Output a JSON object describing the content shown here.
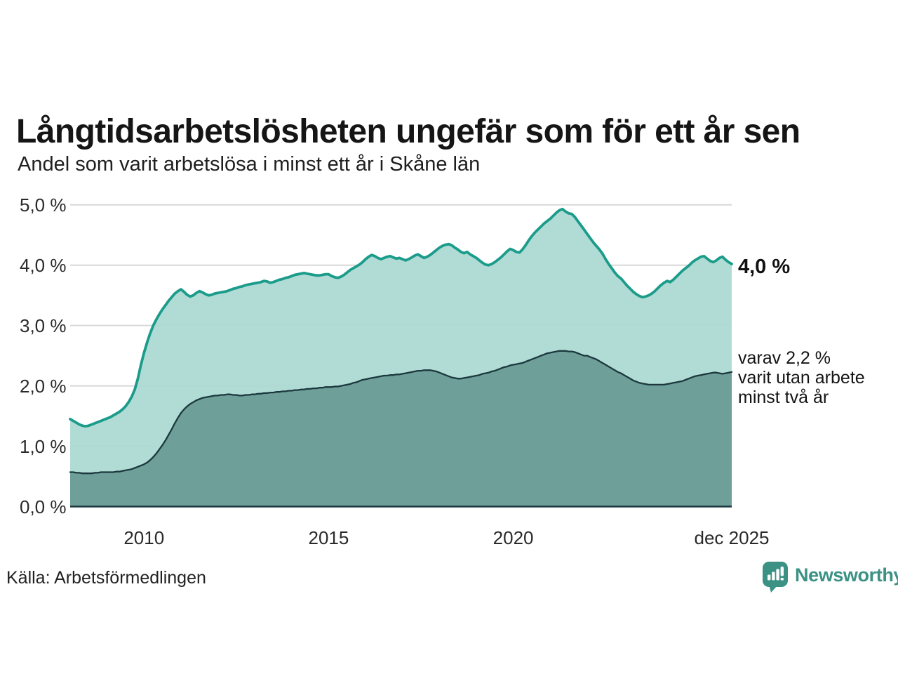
{
  "title": "Långtidsarbetslösheten ungefär som för ett år sen",
  "subtitle": "Andel som varit arbetslösa i minst ett år i Skåne län",
  "source": "Källa: Arbetsförmedlingen",
  "branding": {
    "name": "Newsworthy",
    "logo_icon": "bar-chart-speech-bubble-icon",
    "color": "#3b9184"
  },
  "end_labels": {
    "one_year": "4,0 %",
    "two_years_lines": [
      "varav 2,2 %",
      "varit utan arbete",
      "minst två år"
    ]
  },
  "colors": {
    "line_one_year": "#1b9c8b",
    "fill_one_year": "#abd9d2",
    "line_two_years": "#1c383e",
    "fill_two_years": "#689a95",
    "gridline": "#d8d8d8",
    "baseline": "#1c383e"
  },
  "chart_data": {
    "type": "area",
    "title": "Långtidsarbetslösheten ungefär som för ett år sen",
    "subtitle": "Andel som varit arbetslösa i minst ett år i Skåne län",
    "x_start_year": 2008,
    "x_end_year": 2025.9167,
    "x_resolution": "monthly",
    "ylim": [
      0,
      5
    ],
    "grid": true,
    "legend": "inline-annotations",
    "yticks": [
      {
        "label": "0,0 %",
        "value": 0
      },
      {
        "label": "1,0 %",
        "value": 1
      },
      {
        "label": "2,0 %",
        "value": 2
      },
      {
        "label": "3,0 %",
        "value": 3
      },
      {
        "label": "4,0 %",
        "value": 4
      },
      {
        "label": "5,0 %",
        "value": 5
      }
    ],
    "xticks": [
      {
        "label": "2010",
        "year": 2010
      },
      {
        "label": "2015",
        "year": 2015
      },
      {
        "label": "2020",
        "year": 2020
      },
      {
        "label": "dec 2025",
        "year": 2025.9167
      }
    ],
    "series": [
      {
        "name": "Andel som varit arbetslösa i minst ett år",
        "end_value_label": "4,0 %",
        "line_color": "#1b9c8b",
        "fill_color": "#abd9d2",
        "values": [
          1.45,
          1.42,
          1.39,
          1.36,
          1.34,
          1.33,
          1.34,
          1.36,
          1.38,
          1.4,
          1.42,
          1.44,
          1.46,
          1.48,
          1.51,
          1.54,
          1.57,
          1.61,
          1.66,
          1.73,
          1.82,
          1.94,
          2.12,
          2.35,
          2.55,
          2.72,
          2.87,
          3.0,
          3.1,
          3.19,
          3.27,
          3.34,
          3.41,
          3.47,
          3.53,
          3.57,
          3.6,
          3.56,
          3.51,
          3.48,
          3.5,
          3.54,
          3.57,
          3.55,
          3.52,
          3.5,
          3.51,
          3.53,
          3.54,
          3.55,
          3.56,
          3.57,
          3.59,
          3.61,
          3.62,
          3.64,
          3.65,
          3.67,
          3.68,
          3.69,
          3.7,
          3.71,
          3.72,
          3.74,
          3.73,
          3.71,
          3.72,
          3.74,
          3.76,
          3.77,
          3.79,
          3.8,
          3.82,
          3.84,
          3.85,
          3.86,
          3.87,
          3.86,
          3.85,
          3.84,
          3.83,
          3.83,
          3.84,
          3.85,
          3.85,
          3.82,
          3.8,
          3.79,
          3.81,
          3.84,
          3.88,
          3.92,
          3.95,
          3.98,
          4.01,
          4.05,
          4.1,
          4.14,
          4.17,
          4.15,
          4.12,
          4.1,
          4.12,
          4.14,
          4.15,
          4.13,
          4.11,
          4.12,
          4.1,
          4.08,
          4.1,
          4.13,
          4.16,
          4.18,
          4.15,
          4.12,
          4.14,
          4.17,
          4.21,
          4.25,
          4.29,
          4.32,
          4.34,
          4.35,
          4.33,
          4.29,
          4.26,
          4.22,
          4.2,
          4.22,
          4.18,
          4.15,
          4.12,
          4.08,
          4.04,
          4.01,
          4.0,
          4.02,
          4.05,
          4.09,
          4.13,
          4.18,
          4.23,
          4.27,
          4.25,
          4.22,
          4.21,
          4.26,
          4.33,
          4.41,
          4.48,
          4.54,
          4.59,
          4.64,
          4.69,
          4.73,
          4.77,
          4.82,
          4.87,
          4.91,
          4.93,
          4.89,
          4.86,
          4.85,
          4.8,
          4.73,
          4.66,
          4.59,
          4.52,
          4.45,
          4.38,
          4.32,
          4.26,
          4.19,
          4.1,
          4.02,
          3.95,
          3.88,
          3.82,
          3.78,
          3.72,
          3.66,
          3.61,
          3.56,
          3.52,
          3.49,
          3.47,
          3.48,
          3.5,
          3.53,
          3.57,
          3.62,
          3.67,
          3.71,
          3.74,
          3.72,
          3.76,
          3.81,
          3.86,
          3.91,
          3.95,
          3.99,
          4.04,
          4.08,
          4.11,
          4.14,
          4.15,
          4.11,
          4.07,
          4.05,
          4.08,
          4.12,
          4.14,
          4.09,
          4.05,
          4.02
        ]
      },
      {
        "name": "varav utan arbete minst två år",
        "end_value_label": "2,2 %",
        "line_color": "#1c383e",
        "fill_color": "#689a95",
        "values": [
          0.57,
          0.57,
          0.56,
          0.56,
          0.55,
          0.55,
          0.55,
          0.55,
          0.56,
          0.56,
          0.57,
          0.57,
          0.57,
          0.57,
          0.57,
          0.58,
          0.58,
          0.59,
          0.6,
          0.61,
          0.62,
          0.64,
          0.66,
          0.68,
          0.7,
          0.73,
          0.77,
          0.82,
          0.88,
          0.95,
          1.02,
          1.1,
          1.19,
          1.28,
          1.38,
          1.47,
          1.55,
          1.61,
          1.66,
          1.7,
          1.73,
          1.76,
          1.78,
          1.8,
          1.81,
          1.82,
          1.83,
          1.84,
          1.84,
          1.85,
          1.85,
          1.86,
          1.86,
          1.85,
          1.85,
          1.84,
          1.84,
          1.85,
          1.85,
          1.86,
          1.86,
          1.87,
          1.87,
          1.88,
          1.88,
          1.89,
          1.89,
          1.9,
          1.9,
          1.91,
          1.91,
          1.92,
          1.92,
          1.93,
          1.93,
          1.94,
          1.94,
          1.95,
          1.95,
          1.96,
          1.96,
          1.97,
          1.97,
          1.98,
          1.98,
          1.98,
          1.99,
          1.99,
          2.0,
          2.01,
          2.02,
          2.03,
          2.05,
          2.06,
          2.08,
          2.1,
          2.11,
          2.12,
          2.13,
          2.14,
          2.15,
          2.16,
          2.17,
          2.17,
          2.18,
          2.18,
          2.19,
          2.19,
          2.2,
          2.21,
          2.22,
          2.23,
          2.24,
          2.25,
          2.25,
          2.26,
          2.26,
          2.26,
          2.25,
          2.24,
          2.22,
          2.2,
          2.18,
          2.16,
          2.14,
          2.13,
          2.12,
          2.12,
          2.13,
          2.14,
          2.15,
          2.16,
          2.17,
          2.18,
          2.2,
          2.21,
          2.22,
          2.24,
          2.25,
          2.27,
          2.29,
          2.31,
          2.32,
          2.34,
          2.35,
          2.36,
          2.37,
          2.38,
          2.4,
          2.42,
          2.44,
          2.46,
          2.48,
          2.5,
          2.52,
          2.54,
          2.55,
          2.56,
          2.57,
          2.58,
          2.58,
          2.58,
          2.57,
          2.57,
          2.56,
          2.54,
          2.52,
          2.5,
          2.5,
          2.48,
          2.46,
          2.44,
          2.41,
          2.38,
          2.35,
          2.32,
          2.29,
          2.26,
          2.23,
          2.21,
          2.18,
          2.15,
          2.12,
          2.09,
          2.07,
          2.05,
          2.04,
          2.03,
          2.02,
          2.02,
          2.02,
          2.02,
          2.02,
          2.02,
          2.03,
          2.04,
          2.05,
          2.06,
          2.07,
          2.08,
          2.1,
          2.12,
          2.14,
          2.16,
          2.17,
          2.18,
          2.19,
          2.2,
          2.21,
          2.22,
          2.22,
          2.21,
          2.2,
          2.21,
          2.22,
          2.23
        ]
      }
    ]
  }
}
